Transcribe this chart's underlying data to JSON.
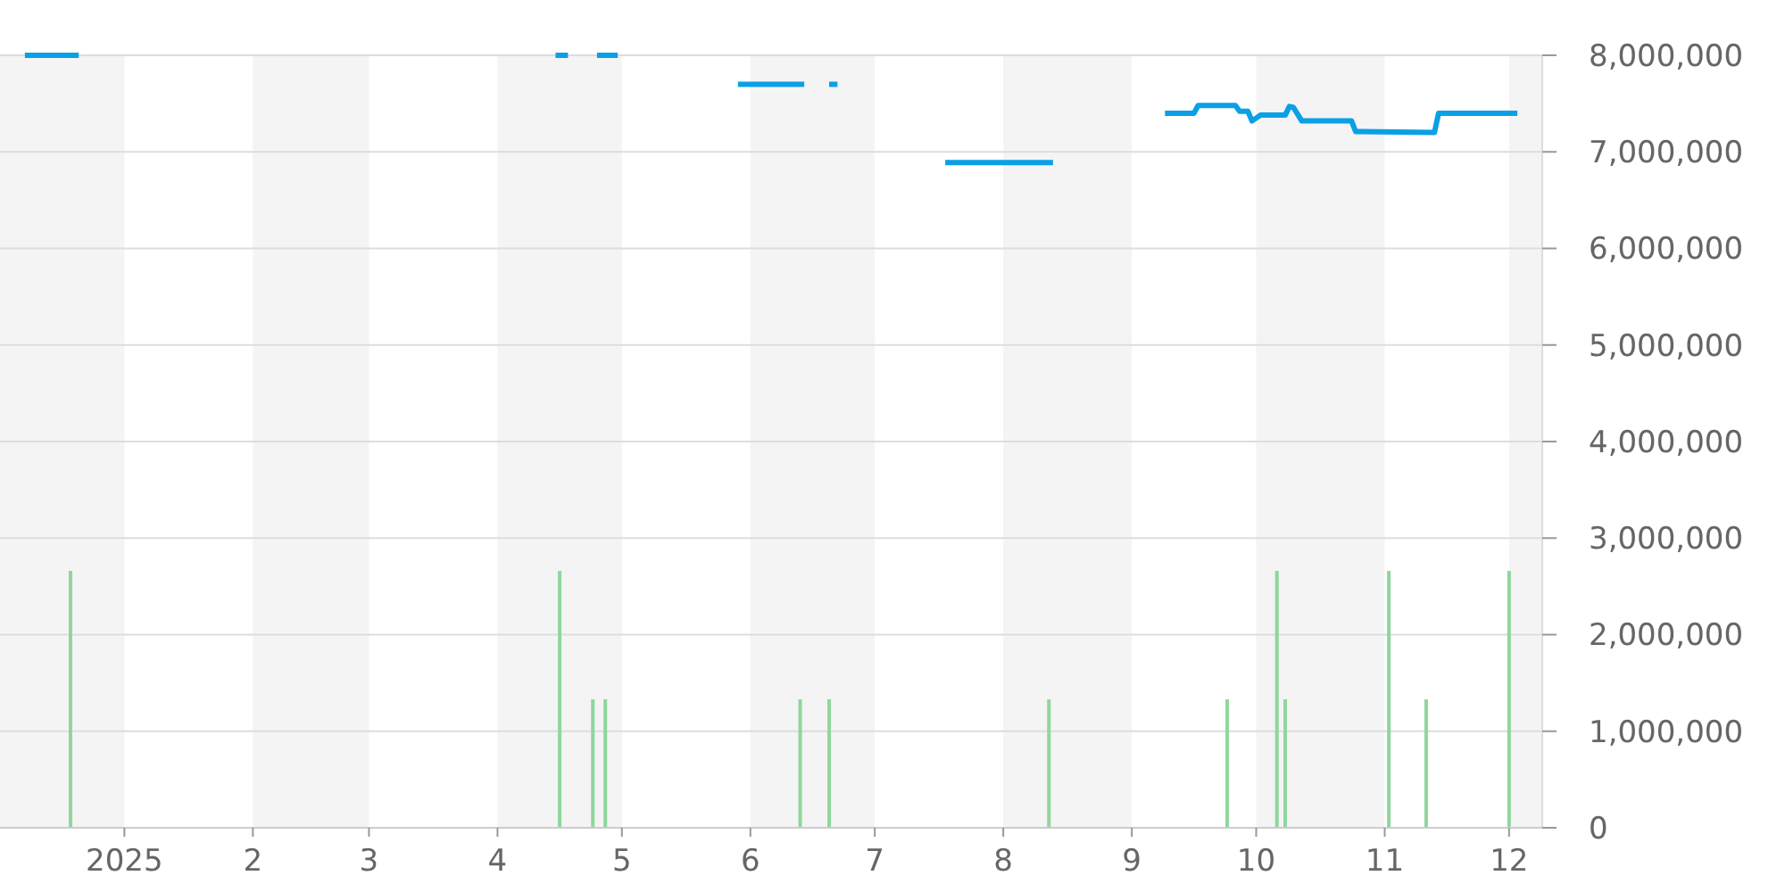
{
  "chart_data": {
    "type": "line",
    "xlim": [
      "2024-12-02",
      "2025-12-09"
    ],
    "ylim": [
      0,
      8000000
    ],
    "xticks": [
      {
        "value": "2025-01-01",
        "label": "2025"
      },
      {
        "value": "2025-02-01",
        "label": "2"
      },
      {
        "value": "2025-03-01",
        "label": "3"
      },
      {
        "value": "2025-04-01",
        "label": "4"
      },
      {
        "value": "2025-05-01",
        "label": "5"
      },
      {
        "value": "2025-06-01",
        "label": "6"
      },
      {
        "value": "2025-07-01",
        "label": "7"
      },
      {
        "value": "2025-08-01",
        "label": "8"
      },
      {
        "value": "2025-09-01",
        "label": "9"
      },
      {
        "value": "2025-10-01",
        "label": "10"
      },
      {
        "value": "2025-11-01",
        "label": "11"
      },
      {
        "value": "2025-12-01",
        "label": "12"
      }
    ],
    "yticks": [
      0,
      {
        "value": 1000000,
        "label": "1,000,000"
      },
      {
        "value": 2000000,
        "label": "2,000,000"
      },
      {
        "value": 3000000,
        "label": "3,000,000"
      },
      {
        "value": 4000000,
        "label": "4,000,000"
      },
      {
        "value": 5000000,
        "label": "5,000,000"
      },
      {
        "value": 6000000,
        "label": "6,000,000"
      },
      {
        "value": 7000000,
        "label": "7,000,000"
      },
      {
        "value": 8000000,
        "label": "8,000,000"
      }
    ],
    "grid": "y",
    "marker": "none",
    "line_style": "solid",
    "bands": [
      {
        "axis": "x",
        "from": "2024-12-02",
        "to": "2025-01-01",
        "color": "#f4f4f4"
      },
      {
        "axis": "x",
        "from": "2025-02-01",
        "to": "2025-03-01",
        "color": "#f4f4f4"
      },
      {
        "axis": "x",
        "from": "2025-04-01",
        "to": "2025-05-01",
        "color": "#f4f4f4"
      },
      {
        "axis": "x",
        "from": "2025-06-01",
        "to": "2025-07-01",
        "color": "#f4f4f4"
      },
      {
        "axis": "x",
        "from": "2025-08-01",
        "to": "2025-09-01",
        "color": "#f4f4f4"
      },
      {
        "axis": "x",
        "from": "2025-10-01",
        "to": "2025-11-01",
        "color": "#f4f4f4"
      },
      {
        "axis": "x",
        "from": "2025-12-01",
        "to": "2025-12-09",
        "color": "#f4f4f4"
      }
    ],
    "series": [
      {
        "type": "bar",
        "color": "#8fd69c",
        "x": [
          "2024-12-19",
          "2025-04-16",
          "2025-04-24",
          "2025-04-27",
          "2025-06-13",
          "2025-06-20",
          "2025-08-12",
          "2025-09-24",
          "2025-10-06",
          "2025-10-08",
          "2025-11-02",
          "2025-11-11",
          "2025-12-01"
        ],
        "values": [
          2660000,
          2660000,
          1330000,
          1330000,
          1330000,
          1330000,
          1330000,
          1330000,
          2660000,
          1330000,
          2660000,
          1330000,
          2660000
        ]
      },
      {
        "color": "#0aa0e6",
        "x": [
          "2024-12-08",
          "2024-12-21",
          "2025-02-15",
          "2025-04-15",
          "2025-04-18",
          "2025-04-21",
          "2025-04-25",
          "2025-04-30",
          "2025-05-15",
          "2025-05-29",
          "2025-06-14",
          "2025-06-17",
          "2025-06-20",
          "2025-06-22",
          "2025-07-05",
          "2025-07-18",
          "2025-08-13",
          "2025-08-25",
          "2025-09-09",
          "2025-09-16",
          "2025-09-17",
          "2025-09-26",
          "2025-09-27",
          "2025-09-29",
          "2025-09-30",
          "2025-10-02",
          "2025-10-08",
          "2025-10-09",
          "2025-10-10",
          "2025-10-12",
          "2025-10-24",
          "2025-10-25",
          "2025-11-13",
          "2025-11-14",
          "2025-12-03"
        ],
        "values": [
          8000000,
          8000000,
          null,
          8000000,
          8000000,
          null,
          8000000,
          8000000,
          null,
          7700000,
          7700000,
          null,
          7700000,
          7700000,
          null,
          6890000,
          6890000,
          null,
          7400000,
          7400000,
          7480000,
          7480000,
          7420000,
          7420000,
          7320000,
          7380000,
          7380000,
          7470000,
          7460000,
          7320000,
          7320000,
          7210000,
          7200000,
          7400000,
          7400000
        ]
      }
    ]
  }
}
